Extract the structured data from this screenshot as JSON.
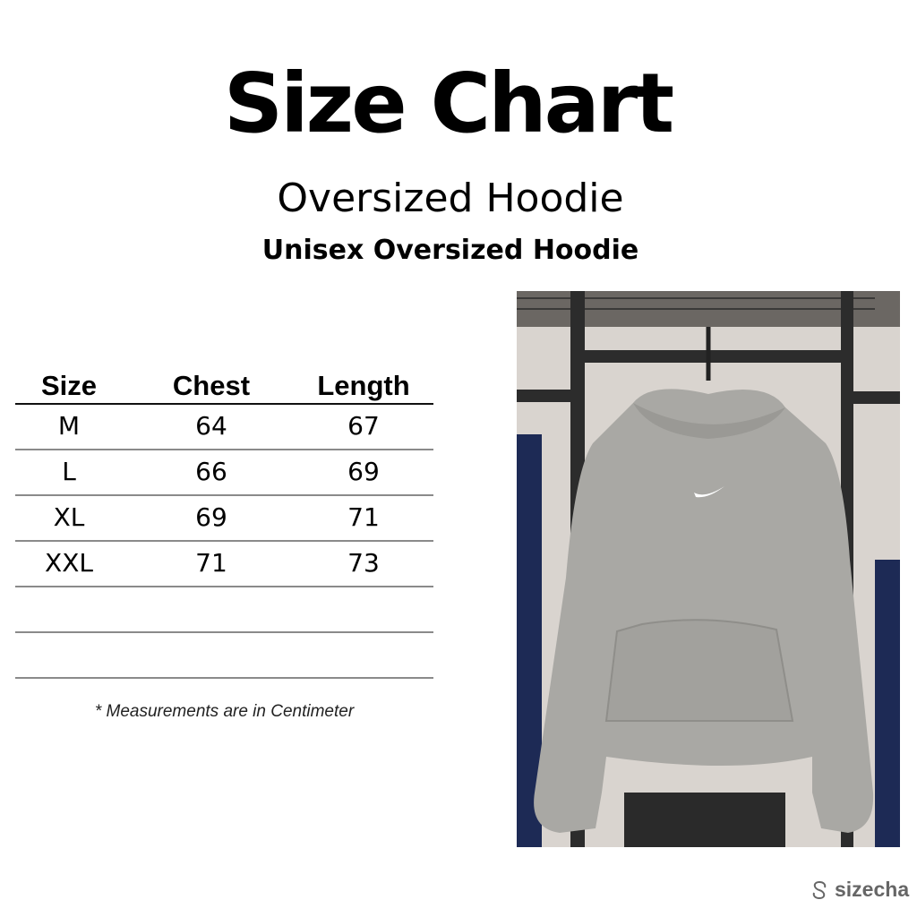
{
  "header": {
    "title": "Size Chart",
    "product_name": "Oversized Hoodie",
    "product_subtitle": "Unisex Oversized Hoodie"
  },
  "table": {
    "columns": [
      "Size",
      "Chest",
      "Length"
    ],
    "rows": [
      [
        "M",
        "64",
        "67"
      ],
      [
        "L",
        "66",
        "69"
      ],
      [
        "XL",
        "69",
        "71"
      ],
      [
        "XXL",
        "71",
        "73"
      ],
      [
        "",
        "",
        ""
      ],
      [
        "",
        "",
        ""
      ]
    ]
  },
  "note": "* Measurements are in Centimeter",
  "photo": {
    "subject": "grey hoodie on hanger",
    "hoodie_color": "#a9a8a4"
  },
  "brand": {
    "logo_text": "sizecha",
    "icon": "sizechart-logo-icon"
  }
}
